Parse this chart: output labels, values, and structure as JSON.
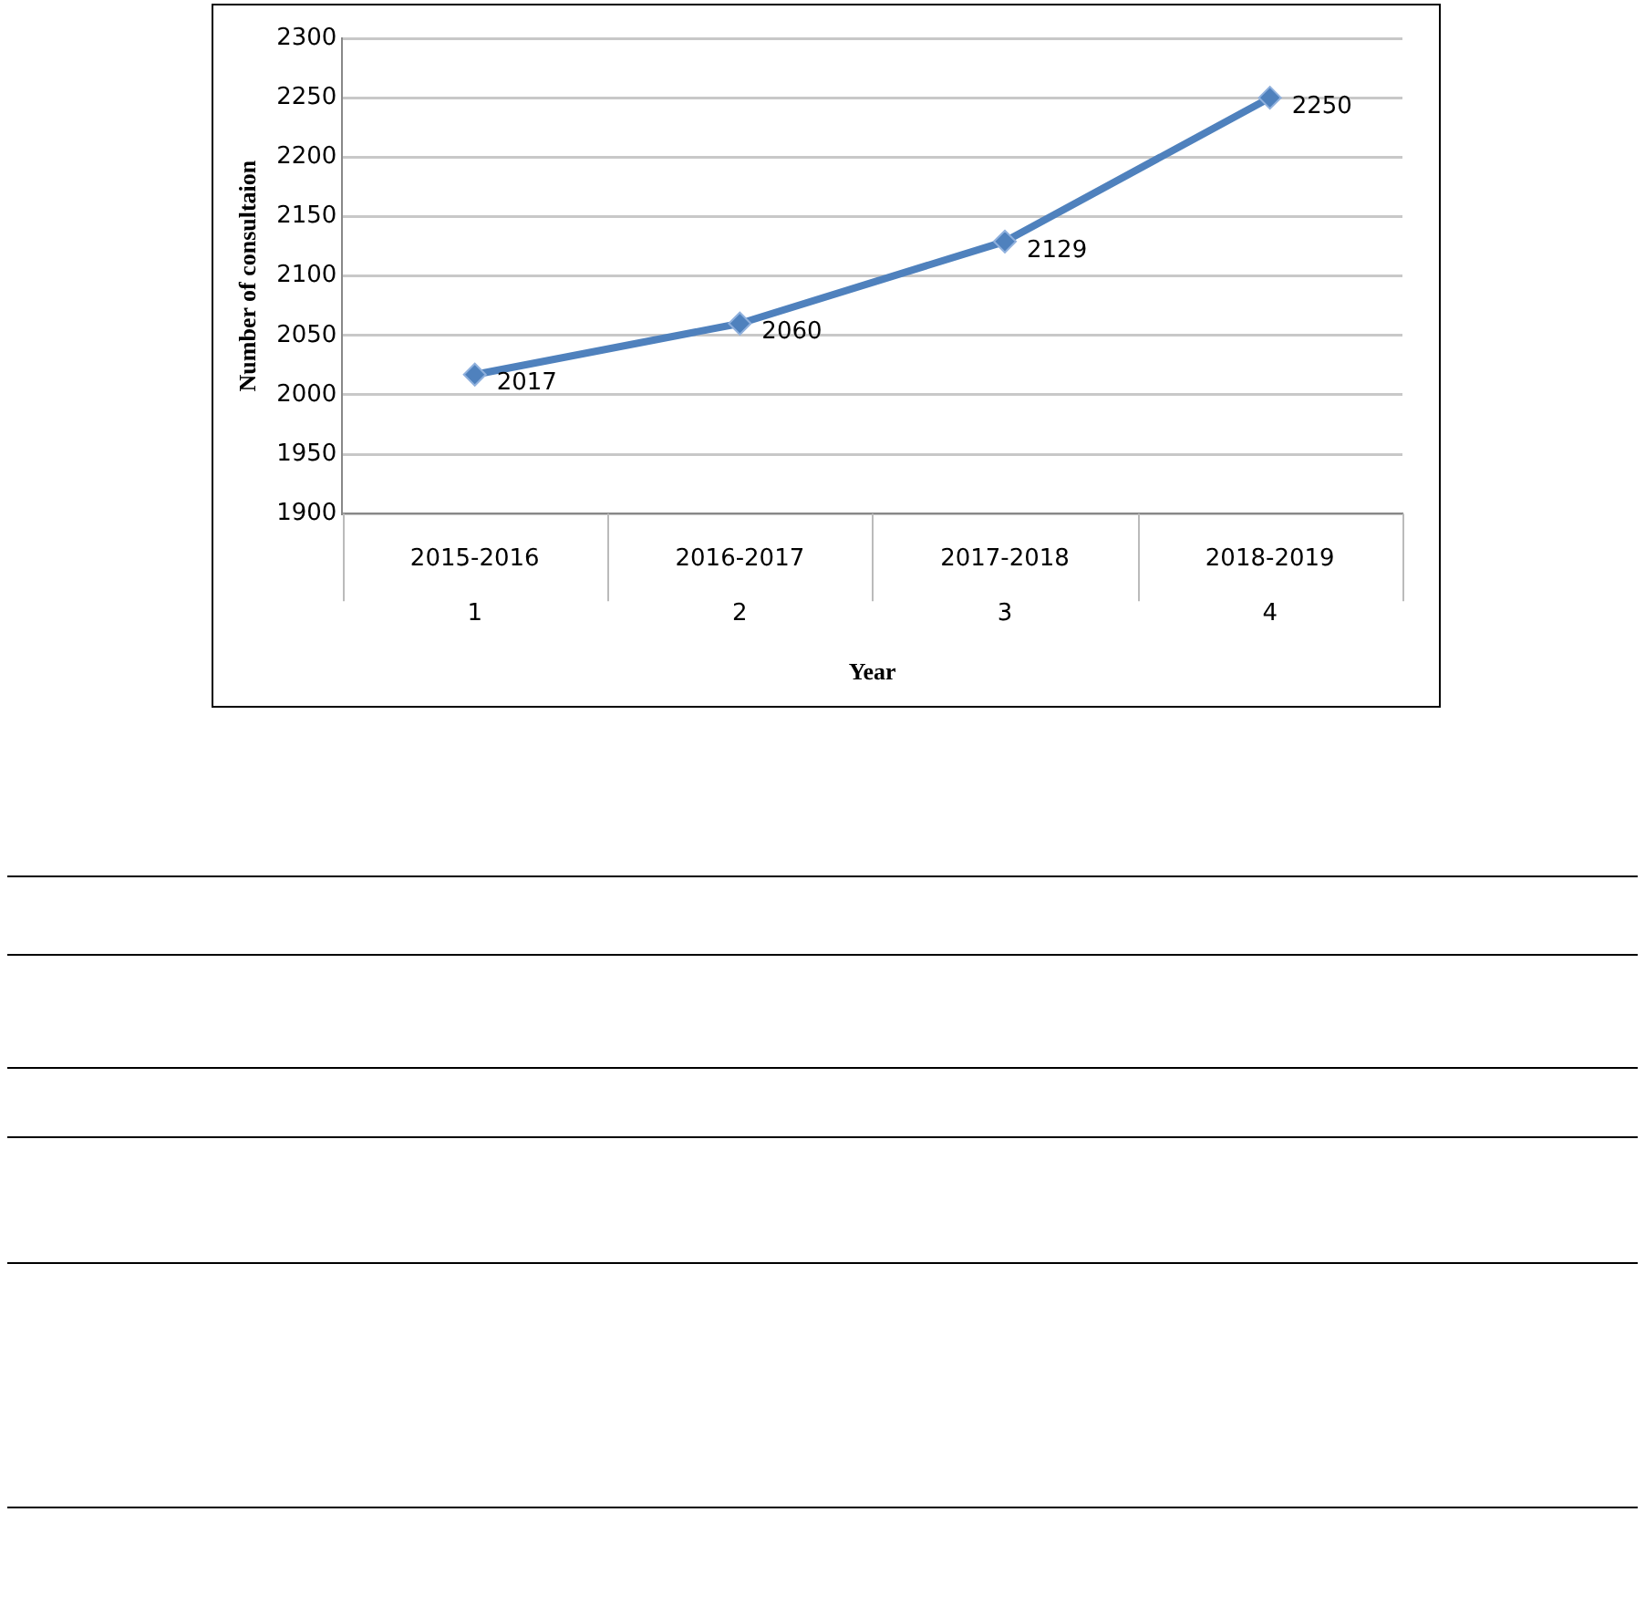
{
  "chart_data": {
    "type": "line",
    "xlabel": "Year",
    "ylabel": "Number of consultaion",
    "categories": [
      "2015-2016\n1",
      "2016-2017\n2",
      "2017-2018\n3",
      "2018-2019\n4"
    ],
    "series": [
      {
        "color": "#4f81bd",
        "values": [
          2017,
          2060,
          2129,
          2250
        ]
      }
    ],
    "ylim": [
      1900,
      2300
    ],
    "yticks": [
      1900,
      1950,
      2000,
      2050,
      2100,
      2150,
      2200,
      2250,
      2300
    ],
    "grid": "y",
    "legend": false,
    "marker": "diamond",
    "line_style": "solid",
    "data_labels": true
  }
}
